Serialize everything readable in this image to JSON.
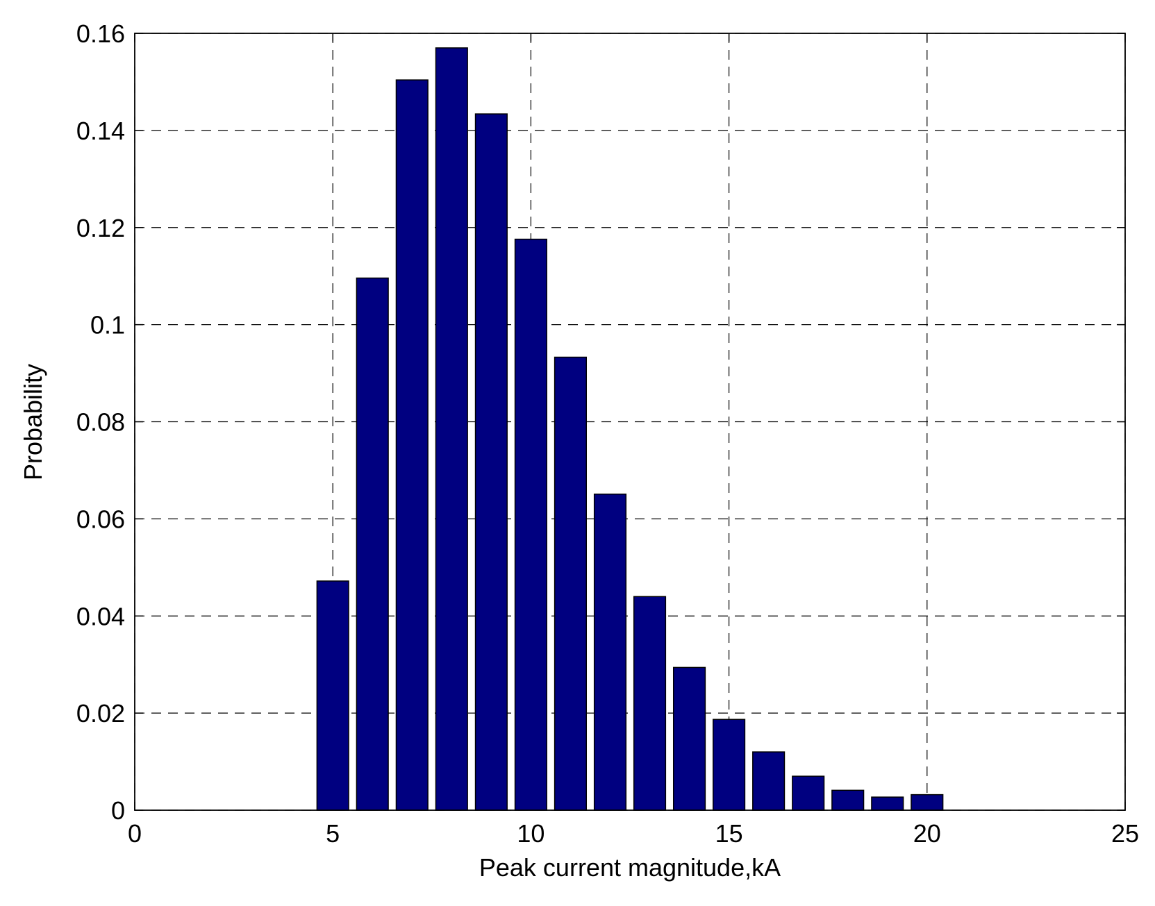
{
  "chart_data": {
    "type": "bar",
    "x": [
      5,
      6,
      7,
      8,
      9,
      10,
      11,
      12,
      13,
      14,
      15,
      16,
      17,
      18,
      19,
      20
    ],
    "values": [
      0.0472,
      0.1096,
      0.1504,
      0.157,
      0.1434,
      0.1176,
      0.0933,
      0.0651,
      0.044,
      0.0294,
      0.0187,
      0.012,
      0.007,
      0.0041,
      0.0027,
      0.0032
    ],
    "bar_width": 0.8,
    "color": "#000080",
    "xlabel": "Peak current magnitude,kA",
    "ylabel": "Probability",
    "xlim": [
      0,
      25
    ],
    "xticks": [
      0,
      5,
      10,
      15,
      20,
      25
    ],
    "ylim": [
      0,
      0.16
    ],
    "yticks": [
      0,
      0.02,
      0.04,
      0.06,
      0.08,
      0.1,
      0.12,
      0.14,
      0.16
    ],
    "grid": true
  }
}
